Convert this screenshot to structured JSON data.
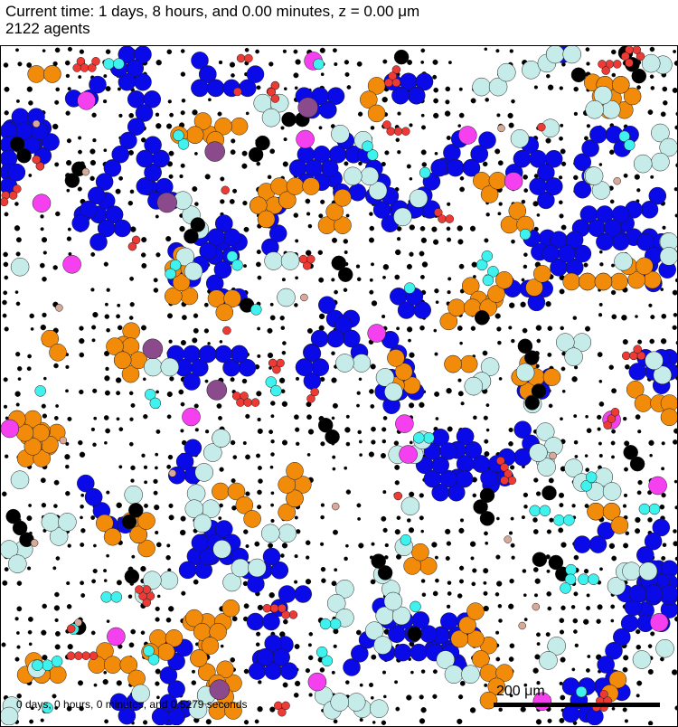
{
  "header": {
    "time_line": "Current time: 1 days, 8 hours, and 0.00 minutes, z = 0.00 μm",
    "agents_line": "2122 agents"
  },
  "footer": {
    "elapsed": "0 days, 0 hours, 0 minutes, and 0.5279 seconds"
  },
  "scale_bar": {
    "label": "200 μm"
  },
  "agent_colors": {
    "blue": "#0a0ae8",
    "orange": "#f28a0a",
    "pale_cyan": "#c6ecea",
    "magenta": "#f540f0",
    "black": "#000000",
    "cyan": "#3ff2ee",
    "red": "#ee3a35",
    "purple": "#8a4a8c",
    "tan": "#d8a898"
  }
}
